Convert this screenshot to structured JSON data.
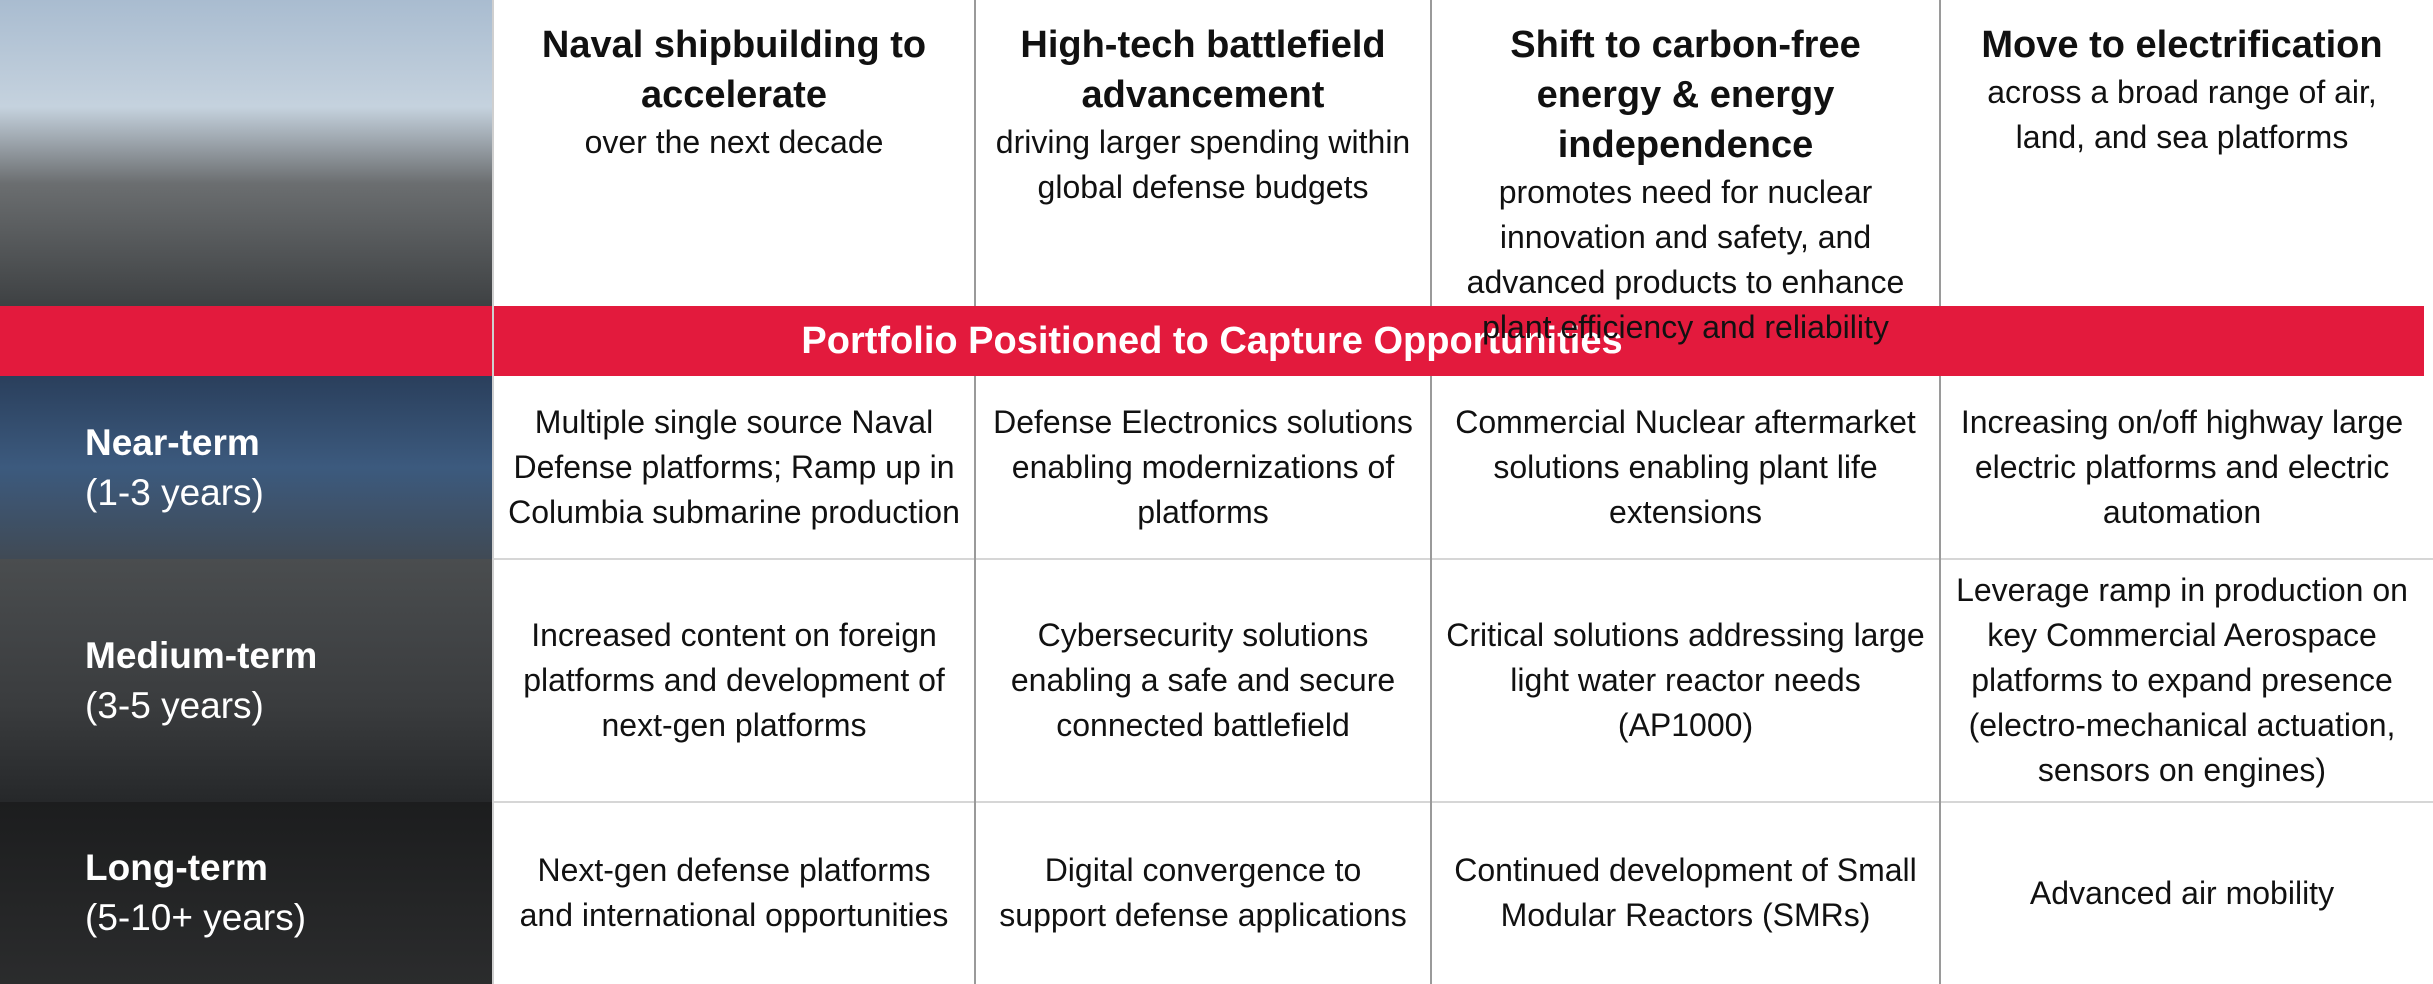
{
  "header": {
    "columns": [
      {
        "title": "Naval shipbuilding to accelerate",
        "subtitle": "over the next decade"
      },
      {
        "title": "High-tech battlefield advancement",
        "subtitle": "driving larger spending within global defense budgets"
      },
      {
        "title": "Shift to carbon-free energy & energy independence",
        "subtitle": "promotes need for nuclear innovation and safety, and advanced products to enhance plant efficiency and reliability"
      },
      {
        "title": "Move to electrification",
        "subtitle": "across a broad range of air, land, and sea platforms"
      }
    ]
  },
  "band_title": "Portfolio Positioned to Capture Opportunities",
  "rows": [
    {
      "label": "Near-term",
      "sublabel": "(1-3 years)",
      "cells": [
        "Multiple single source Naval Defense platforms; Ramp up in Columbia submarine production",
        "Defense Electronics solutions enabling modernizations of platforms",
        "Commercial Nuclear aftermarket solutions enabling plant life extensions",
        "Increasing on/off highway large electric platforms and electric automation"
      ]
    },
    {
      "label": "Medium-term",
      "sublabel": "(3-5 years)",
      "cells": [
        "Increased content on foreign platforms and development of next-gen platforms",
        "Cybersecurity solutions enabling a safe and secure connected battlefield",
        "Critical solutions addressing large light water reactor needs (AP1000)",
        "Leverage ramp in production on key Commercial Aerospace platforms to expand presence (electro-mechanical actuation, sensors on engines)"
      ]
    },
    {
      "label": "Long-term",
      "sublabel": "(5-10+ years)",
      "cells": [
        "Next-gen defense platforms and international opportunities",
        "Digital convergence to support defense applications",
        "Continued development of Small Modular Reactors (SMRs)",
        "Advanced air mobility"
      ]
    }
  ]
}
